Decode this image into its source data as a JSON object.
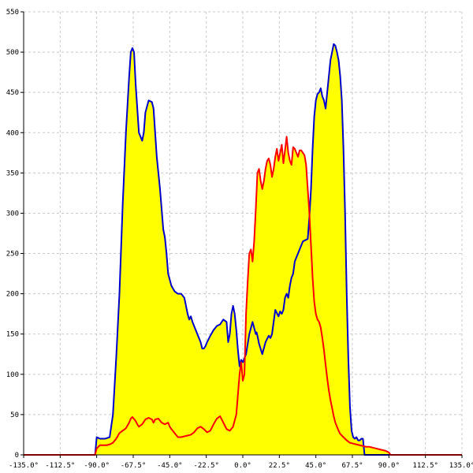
{
  "chart_data": {
    "type": "area",
    "title": "",
    "xlabel": "",
    "ylabel": "",
    "xlim": [
      -135,
      135
    ],
    "ylim": [
      0,
      550
    ],
    "grid": true,
    "x_ticks": [
      -135,
      -112.5,
      -90,
      -67.5,
      -45,
      -22.5,
      0,
      22.5,
      45,
      67.5,
      90,
      112.5,
      135
    ],
    "x_tick_labels": [
      "-135.0°",
      "-112.5°",
      "-90.0°",
      "-67.5°",
      "-45.0°",
      "-22.5°",
      "0.0°",
      "22.5°",
      "45.0°",
      "67.5°",
      "90.0°",
      "112.5°",
      "135.0°"
    ],
    "y_ticks": [
      0,
      50,
      100,
      150,
      200,
      250,
      300,
      350,
      400,
      450,
      500,
      550
    ],
    "y_tick_labels": [
      "0",
      "50",
      "100",
      "150",
      "200",
      "250",
      "300",
      "350",
      "400",
      "450",
      "500",
      "550"
    ],
    "colors": {
      "fill": "#ffff00",
      "series_blue": "#0000cc",
      "series_red": "#ff0000",
      "grid": "#c8c8c8"
    },
    "series": [
      {
        "color": "#0000cc",
        "x": [
          -91,
          -90,
          -88,
          -85,
          -82,
          -80,
          -78,
          -76,
          -74,
          -72,
          -70,
          -69,
          -68,
          -67,
          -66,
          -64,
          -62,
          -61,
          -60,
          -58,
          -56,
          -55,
          -54,
          -53,
          -51,
          -50,
          -49,
          -48,
          -47,
          -46,
          -44,
          -42,
          -40,
          -38,
          -36,
          -34,
          -33,
          -32,
          -31,
          -30,
          -28,
          -26,
          -25,
          -24,
          -23,
          -22,
          -20,
          -18,
          -16,
          -14,
          -12,
          -10,
          -9,
          -8,
          -7,
          -6,
          -5,
          -4,
          -3,
          -2,
          -1,
          0,
          1,
          2,
          4,
          6,
          8,
          8.5,
          9,
          10,
          12,
          14,
          16,
          17,
          18,
          19,
          20,
          22,
          23,
          24,
          25,
          26,
          27,
          28,
          29,
          30,
          31,
          32,
          34,
          36,
          37,
          38,
          40,
          41,
          42,
          43,
          44,
          45,
          46,
          47,
          48,
          49,
          50,
          51,
          52,
          54,
          56,
          57,
          58,
          59,
          60,
          61,
          62,
          63,
          64,
          65,
          66,
          67,
          68,
          69,
          70,
          71,
          72,
          73,
          74,
          75,
          76,
          77,
          78,
          80,
          82,
          84,
          86,
          88,
          90,
          90.5
        ],
        "y": [
          0,
          22,
          20,
          20,
          22,
          50,
          120,
          200,
          310,
          400,
          470,
          500,
          505,
          500,
          460,
          400,
          390,
          400,
          425,
          440,
          438,
          430,
          400,
          370,
          330,
          305,
          280,
          270,
          250,
          225,
          210,
          203,
          200,
          200,
          195,
          175,
          168,
          172,
          165,
          160,
          150,
          140,
          132,
          132,
          135,
          140,
          148,
          155,
          160,
          162,
          168,
          165,
          140,
          150,
          175,
          185,
          175,
          155,
          130,
          110,
          118,
          115,
          120,
          125,
          150,
          165,
          150,
          152,
          148,
          138,
          125,
          140,
          148,
          145,
          150,
          165,
          180,
          172,
          178,
          175,
          180,
          195,
          200,
          195,
          210,
          220,
          225,
          240,
          250,
          260,
          265,
          266,
          268,
          295,
          330,
          380,
          420,
          440,
          448,
          450,
          455,
          445,
          440,
          430,
          450,
          490,
          510,
          508,
          500,
          490,
          470,
          440,
          380,
          300,
          200,
          120,
          60,
          30,
          22,
          20,
          22,
          18,
          18,
          20,
          20,
          0,
          0,
          0,
          0,
          0,
          0,
          0,
          0,
          0,
          0,
          0
        ]
      },
      {
        "color": "#ff0000",
        "x": [
          -135,
          -91,
          -90,
          -88,
          -86,
          -84,
          -82,
          -80,
          -78,
          -76,
          -74,
          -72,
          -70,
          -69,
          -68,
          -66,
          -65,
          -64,
          -62,
          -60,
          -58,
          -56,
          -55,
          -54,
          -52,
          -50,
          -48,
          -46,
          -45,
          -44,
          -42,
          -40,
          -38,
          -36,
          -34,
          -32,
          -30,
          -28,
          -26,
          -24,
          -22,
          -20,
          -18,
          -16,
          -14,
          -12,
          -10,
          -8,
          -6,
          -4,
          -2,
          -1,
          0,
          1,
          2,
          3,
          4,
          5,
          6,
          7,
          8,
          9,
          10,
          11,
          12,
          13,
          14,
          15,
          16,
          17,
          18,
          19,
          20,
          21,
          22,
          23,
          24,
          25,
          26,
          27,
          28,
          29,
          30,
          31,
          32,
          33,
          34,
          35,
          36,
          37,
          38,
          39,
          40,
          41,
          42,
          43,
          44,
          45,
          46,
          47,
          48,
          49,
          50,
          51,
          52,
          53,
          54,
          55,
          56,
          57,
          58,
          59,
          60,
          62,
          64,
          66,
          68,
          70,
          72,
          74,
          76,
          78,
          80,
          82,
          84,
          86,
          88,
          90,
          91,
          135
        ],
        "y": [
          0,
          0,
          8,
          12,
          12,
          12,
          13,
          15,
          20,
          27,
          30,
          33,
          40,
          45,
          47,
          42,
          38,
          35,
          38,
          44,
          46,
          44,
          40,
          44,
          45,
          40,
          38,
          40,
          35,
          32,
          27,
          22,
          22,
          23,
          24,
          25,
          28,
          33,
          35,
          32,
          28,
          30,
          38,
          45,
          48,
          40,
          32,
          30,
          35,
          50,
          100,
          115,
          92,
          100,
          175,
          215,
          250,
          255,
          240,
          265,
          305,
          350,
          355,
          340,
          330,
          340,
          355,
          365,
          368,
          360,
          345,
          355,
          370,
          380,
          365,
          375,
          385,
          362,
          378,
          395,
          375,
          365,
          360,
          382,
          380,
          375,
          370,
          378,
          378,
          375,
          372,
          360,
          330,
          300,
          260,
          220,
          190,
          175,
          168,
          165,
          158,
          145,
          130,
          112,
          95,
          80,
          68,
          58,
          48,
          40,
          35,
          30,
          26,
          22,
          18,
          15,
          14,
          13,
          12,
          11,
          10,
          10,
          9,
          8,
          7,
          6,
          5,
          3,
          0,
          0
        ]
      }
    ]
  }
}
